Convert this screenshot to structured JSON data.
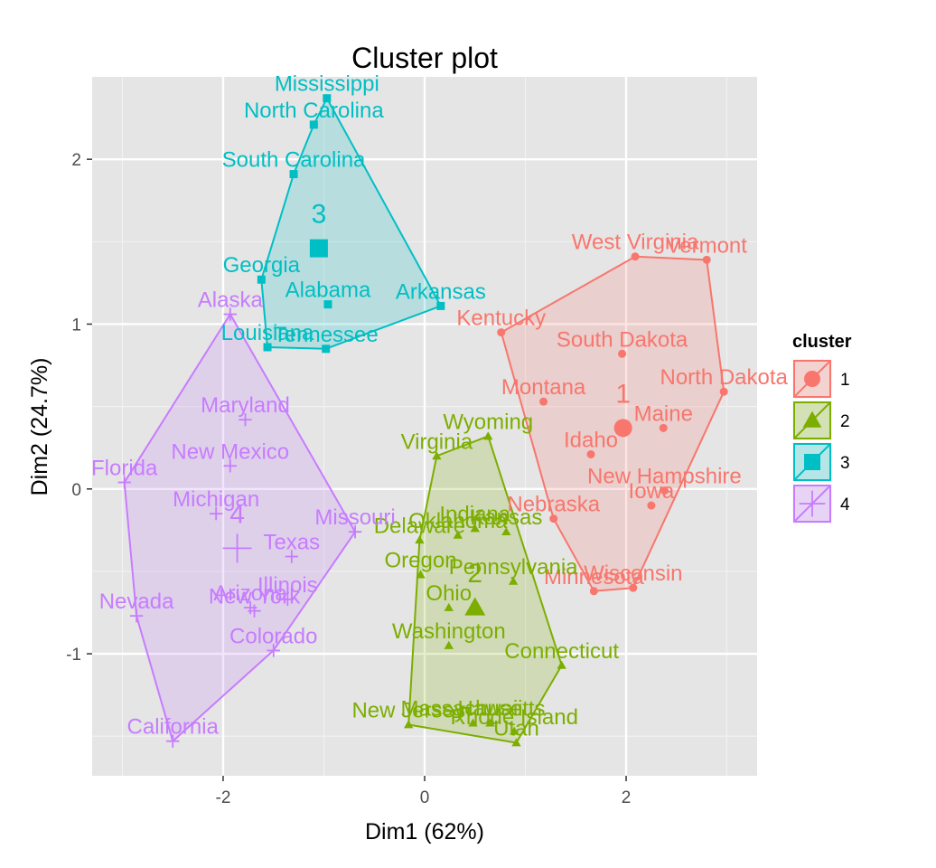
{
  "chart_data": {
    "type": "scatter",
    "title": "Cluster plot",
    "xlabel": "Dim1 (62%)",
    "ylabel": "Dim2 (24.7%)",
    "xlim": [
      -3.3,
      3.3
    ],
    "ylim": [
      -1.74,
      2.5
    ],
    "xticks": [
      -2,
      0,
      2
    ],
    "xtick_labels": [
      "-2",
      "0",
      "2"
    ],
    "yticks": [
      -1,
      0,
      1,
      2
    ],
    "ytick_labels": [
      "-1",
      "0",
      "1",
      "2"
    ],
    "grid": true,
    "legend": {
      "title": "cluster",
      "placement": "right",
      "entries": [
        "1",
        "2",
        "3",
        "4"
      ]
    },
    "clusters": [
      {
        "id": "1",
        "color": "#F8766D",
        "shape": "circle",
        "center": [
          1.97,
          0.37
        ],
        "center_label": "1",
        "points": [
          {
            "label": "West Virginia",
            "x": 2.09,
            "y": 1.41
          },
          {
            "label": "Vermont",
            "x": 2.8,
            "y": 1.39
          },
          {
            "label": "Kentucky",
            "x": 0.76,
            "y": 0.95
          },
          {
            "label": "South Dakota",
            "x": 1.96,
            "y": 0.82
          },
          {
            "label": "North Dakota",
            "x": 2.97,
            "y": 0.59
          },
          {
            "label": "Montana",
            "x": 1.18,
            "y": 0.53
          },
          {
            "label": "Maine",
            "x": 2.37,
            "y": 0.37
          },
          {
            "label": "Idaho",
            "x": 1.65,
            "y": 0.21
          },
          {
            "label": "New Hampshire",
            "x": 2.38,
            "y": -0.01
          },
          {
            "label": "Iowa",
            "x": 2.25,
            "y": -0.1
          },
          {
            "label": "Nebraska",
            "x": 1.28,
            "y": -0.18
          },
          {
            "label": "Wisconsin",
            "x": 2.07,
            "y": -0.6
          },
          {
            "label": "Minnesota",
            "x": 1.68,
            "y": -0.62
          }
        ]
      },
      {
        "id": "2",
        "color": "#7CAE00",
        "shape": "triangle",
        "center": [
          0.5,
          -0.72
        ],
        "center_label": "2",
        "points": [
          {
            "label": "Wyoming",
            "x": 0.63,
            "y": 0.32
          },
          {
            "label": "Virginia",
            "x": 0.12,
            "y": 0.2
          },
          {
            "label": "Indiana",
            "x": 0.5,
            "y": -0.24
          },
          {
            "label": "Kansas",
            "x": 0.81,
            "y": -0.26
          },
          {
            "label": "Oklahoma",
            "x": 0.33,
            "y": -0.28
          },
          {
            "label": "Delaware",
            "x": -0.05,
            "y": -0.31
          },
          {
            "label": "Oregon",
            "x": -0.04,
            "y": -0.52
          },
          {
            "label": "Pennsylvania",
            "x": 0.88,
            "y": -0.56
          },
          {
            "label": "Ohio",
            "x": 0.24,
            "y": -0.72
          },
          {
            "label": "Washington",
            "x": 0.24,
            "y": -0.95
          },
          {
            "label": "Connecticut",
            "x": 1.36,
            "y": -1.07
          },
          {
            "label": "New Jersey",
            "x": -0.16,
            "y": -1.43
          },
          {
            "label": "Massachusetts",
            "x": 0.48,
            "y": -1.42
          },
          {
            "label": "Rhode Island",
            "x": 0.89,
            "y": -1.47
          },
          {
            "label": "Hawaii",
            "x": 0.65,
            "y": -1.42
          },
          {
            "label": "Utah",
            "x": 0.91,
            "y": -1.54
          }
        ]
      },
      {
        "id": "3",
        "color": "#00BFC4",
        "shape": "square",
        "center": [
          -1.05,
          1.46
        ],
        "center_label": "3",
        "points": [
          {
            "label": "Mississippi",
            "x": -0.97,
            "y": 2.37
          },
          {
            "label": "North Carolina",
            "x": -1.1,
            "y": 2.21
          },
          {
            "label": "South Carolina",
            "x": -1.3,
            "y": 1.91
          },
          {
            "label": "Georgia",
            "x": -1.62,
            "y": 1.27
          },
          {
            "label": "Alabama",
            "x": -0.96,
            "y": 1.12
          },
          {
            "label": "Arkansas",
            "x": 0.16,
            "y": 1.11
          },
          {
            "label": "Louisiana",
            "x": -1.56,
            "y": 0.86
          },
          {
            "label": "Tennessee",
            "x": -0.98,
            "y": 0.85
          }
        ]
      },
      {
        "id": "4",
        "color": "#C77CFF",
        "shape": "cross",
        "center": [
          -1.86,
          -0.36
        ],
        "center_label": "4",
        "points": [
          {
            "label": "Alaska",
            "x": -1.93,
            "y": 1.06
          },
          {
            "label": "Maryland",
            "x": -1.78,
            "y": 0.42
          },
          {
            "label": "New Mexico",
            "x": -1.93,
            "y": 0.14
          },
          {
            "label": "Florida",
            "x": -2.98,
            "y": 0.04
          },
          {
            "label": "Michigan",
            "x": -2.07,
            "y": -0.15
          },
          {
            "label": "Missouri",
            "x": -0.69,
            "y": -0.26
          },
          {
            "label": "Texas",
            "x": -1.32,
            "y": -0.41
          },
          {
            "label": "Illinois",
            "x": -1.36,
            "y": -0.67
          },
          {
            "label": "Arizona",
            "x": -1.73,
            "y": -0.72
          },
          {
            "label": "New York",
            "x": -1.69,
            "y": -0.74
          },
          {
            "label": "Nevada",
            "x": -2.86,
            "y": -0.77
          },
          {
            "label": "Colorado",
            "x": -1.5,
            "y": -0.98
          },
          {
            "label": "California",
            "x": -2.5,
            "y": -1.53
          }
        ]
      }
    ]
  }
}
